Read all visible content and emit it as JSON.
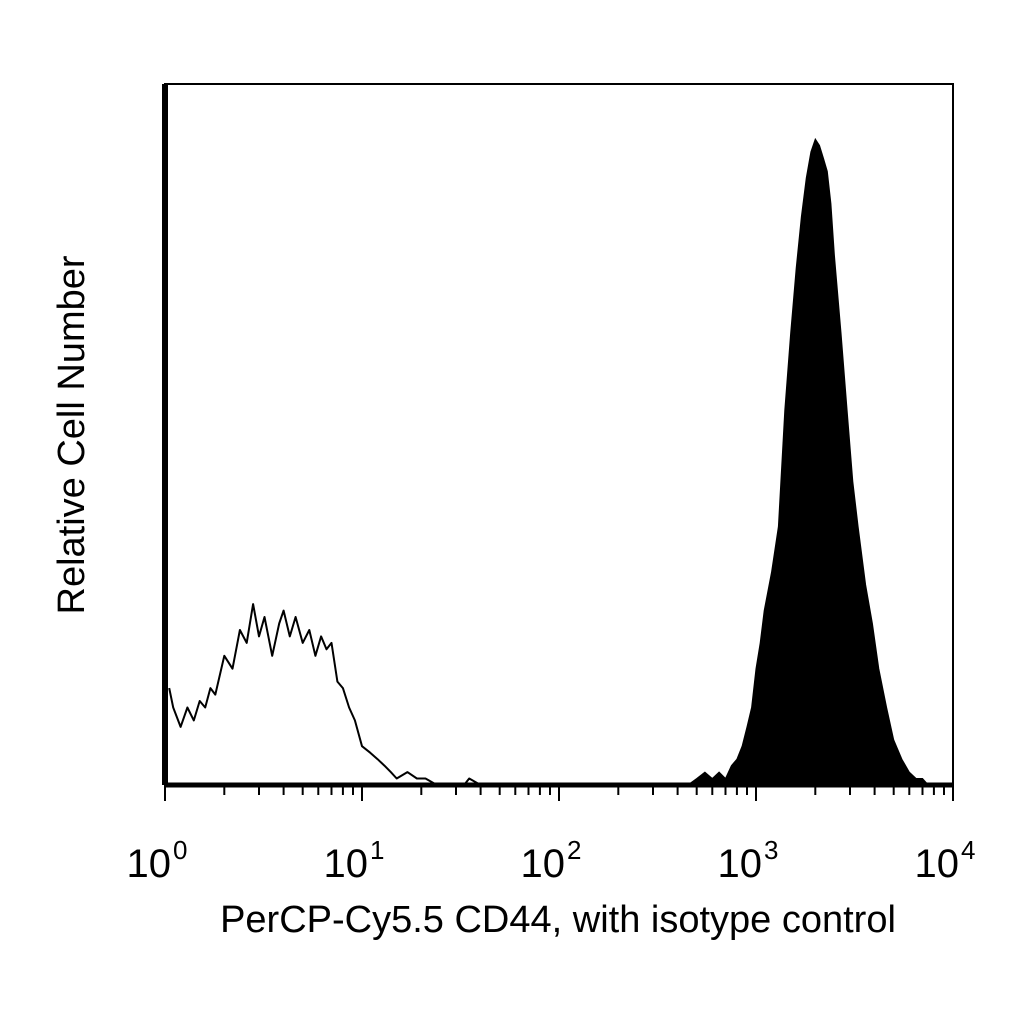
{
  "chart_data": {
    "type": "area",
    "title": "",
    "xlabel": "PerCP-Cy5.5 CD44, with isotype control",
    "ylabel": "Relative Cell Number",
    "x_scale": "log",
    "xlim": [
      1,
      10000
    ],
    "ylim": [
      0,
      100
    ],
    "x_ticks": [
      {
        "base": "10",
        "exp": "0"
      },
      {
        "base": "10",
        "exp": "1"
      },
      {
        "base": "10",
        "exp": "2"
      },
      {
        "base": "10",
        "exp": "3"
      },
      {
        "base": "10",
        "exp": "4"
      }
    ],
    "grid": false,
    "legend": "none",
    "series": [
      {
        "style": "outline",
        "color": "#000000",
        "x": [
          1.05,
          1.1,
          1.2,
          1.3,
          1.4,
          1.5,
          1.6,
          1.7,
          1.8,
          2.0,
          2.2,
          2.4,
          2.6,
          2.8,
          3.0,
          3.2,
          3.5,
          3.8,
          4.0,
          4.3,
          4.6,
          5.0,
          5.4,
          5.8,
          6.2,
          6.6,
          7.0,
          7.5,
          8.0,
          8.6,
          9.2,
          10,
          11,
          12,
          13,
          14,
          15,
          17,
          19,
          21,
          24,
          28,
          33,
          35,
          40
        ],
        "y": [
          15,
          12,
          9,
          12,
          10,
          13,
          12,
          15,
          14,
          20,
          18,
          24,
          22,
          28,
          23,
          26,
          20,
          25,
          27,
          23,
          26,
          22,
          24,
          20,
          23,
          21,
          22,
          16,
          15,
          12,
          10,
          6,
          5,
          4,
          3,
          2,
          1,
          2,
          1,
          1,
          0,
          0,
          0,
          1,
          0
        ]
      },
      {
        "style": "filled",
        "color": "#000000",
        "x": [
          450,
          500,
          550,
          600,
          650,
          700,
          750,
          800,
          850,
          900,
          950,
          1000,
          1050,
          1100,
          1200,
          1300,
          1400,
          1500,
          1600,
          1700,
          1800,
          1900,
          2000,
          2100,
          2200,
          2300,
          2400,
          2500,
          2700,
          2900,
          3100,
          3300,
          3600,
          3900,
          4200,
          4600,
          5000,
          5500,
          6000,
          6500,
          7000,
          7500
        ],
        "y": [
          0,
          1,
          2,
          1,
          2,
          1,
          3,
          4,
          6,
          9,
          12,
          18,
          22,
          27,
          33,
          40,
          58,
          70,
          80,
          88,
          94,
          98,
          100,
          99,
          97,
          95,
          90,
          82,
          70,
          58,
          47,
          40,
          31,
          25,
          18,
          12,
          7,
          4,
          2,
          1,
          1,
          0
        ]
      }
    ]
  }
}
